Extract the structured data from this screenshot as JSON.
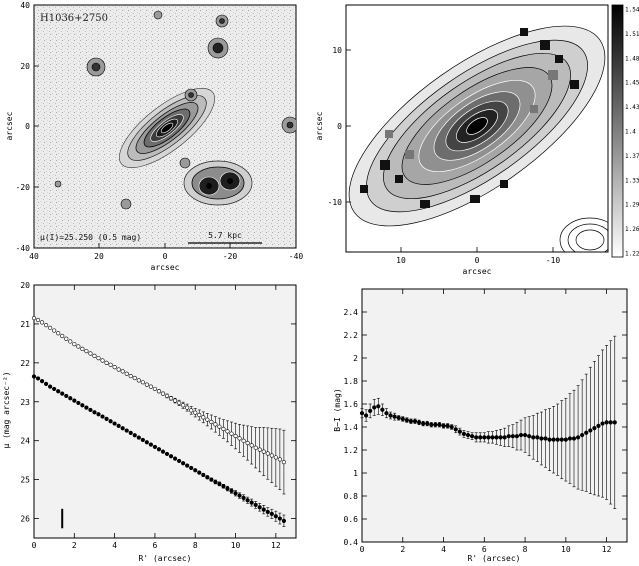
{
  "chart_data": [
    {
      "type": "image",
      "panel": "top-left",
      "object_label": "H1036+2750",
      "contour_note": "μ(I)=25.250 (0.5 mag)",
      "scale_bar_label": "5.7 kpc",
      "x_ticks": [
        "40",
        "20",
        "0",
        "-20",
        "-40"
      ],
      "y_ticks": [
        "40",
        "20",
        "0",
        "-20",
        "-40"
      ],
      "xlabel": "arcsec",
      "ylabel": "arcsec"
    },
    {
      "type": "image",
      "panel": "top-right",
      "x_ticks": [
        "10",
        "0",
        "-10"
      ],
      "y_ticks": [
        "10",
        "0",
        "-10"
      ],
      "xlabel": "arcsec",
      "ylabel": "arcsec",
      "colorbar_ticks": [
        "1.54",
        "1.51",
        "1.48",
        "1.45",
        "1.43",
        "1.4",
        "1.37",
        "1.33",
        "1.29",
        "1.26",
        "1.22"
      ]
    },
    {
      "type": "scatter",
      "panel": "bottom-left",
      "xlabel": "R' (arcsec)",
      "ylabel": "μ (mag arcsec⁻²)",
      "xlim": [
        0,
        13
      ],
      "ylim": [
        26.5,
        20
      ],
      "y_inverted": true,
      "x_ticks": [
        0,
        2,
        4,
        6,
        8,
        10,
        12
      ],
      "y_ticks": [
        20,
        21,
        22,
        23,
        24,
        25,
        26
      ],
      "series": [
        {
          "marker": "open-circle",
          "x": [
            0.0,
            0.2,
            0.4,
            0.6,
            0.8,
            1.0,
            1.2,
            1.4,
            1.6,
            1.8,
            2.0,
            2.2,
            2.4,
            2.6,
            2.8,
            3.0,
            3.2,
            3.4,
            3.6,
            3.8,
            4.0,
            4.2,
            4.4,
            4.6,
            4.8,
            5.0,
            5.2,
            5.4,
            5.6,
            5.8,
            6.0,
            6.2,
            6.4,
            6.6,
            6.8,
            7.0,
            7.2,
            7.4,
            7.6,
            7.8,
            8.0,
            8.2,
            8.4,
            8.6,
            8.8,
            9.0,
            9.2,
            9.4,
            9.6,
            9.8,
            10.0,
            10.2,
            10.4,
            10.6,
            10.8,
            11.0,
            11.2,
            11.4,
            11.6,
            11.8,
            12.0,
            12.2,
            12.4
          ],
          "y": [
            20.85,
            20.9,
            20.96,
            21.03,
            21.1,
            21.17,
            21.24,
            21.31,
            21.38,
            21.45,
            21.52,
            21.58,
            21.64,
            21.7,
            21.76,
            21.82,
            21.88,
            21.94,
            22.0,
            22.05,
            22.11,
            22.17,
            22.22,
            22.28,
            22.34,
            22.39,
            22.45,
            22.5,
            22.56,
            22.61,
            22.67,
            22.73,
            22.79,
            22.85,
            22.91,
            22.97,
            23.03,
            23.09,
            23.15,
            23.22,
            23.28,
            23.34,
            23.4,
            23.46,
            23.52,
            23.58,
            23.64,
            23.7,
            23.76,
            23.82,
            23.88,
            23.94,
            24.0,
            24.06,
            24.12,
            24.18,
            24.23,
            24.28,
            24.33,
            24.38,
            24.43,
            24.48,
            24.55
          ],
          "yerr": [
            0.01,
            0.01,
            0.01,
            0.01,
            0.01,
            0.01,
            0.01,
            0.01,
            0.01,
            0.01,
            0.01,
            0.01,
            0.01,
            0.01,
            0.01,
            0.01,
            0.01,
            0.01,
            0.01,
            0.01,
            0.02,
            0.02,
            0.02,
            0.02,
            0.02,
            0.02,
            0.02,
            0.03,
            0.03,
            0.03,
            0.03,
            0.04,
            0.04,
            0.05,
            0.05,
            0.06,
            0.07,
            0.08,
            0.09,
            0.1,
            0.11,
            0.13,
            0.14,
            0.16,
            0.18,
            0.2,
            0.22,
            0.24,
            0.27,
            0.3,
            0.33,
            0.36,
            0.4,
            0.44,
            0.48,
            0.52,
            0.57,
            0.62,
            0.66,
            0.7,
            0.74,
            0.78,
            0.82
          ]
        },
        {
          "marker": "filled-circle",
          "x": [
            0.0,
            0.2,
            0.4,
            0.6,
            0.8,
            1.0,
            1.2,
            1.4,
            1.6,
            1.8,
            2.0,
            2.2,
            2.4,
            2.6,
            2.8,
            3.0,
            3.2,
            3.4,
            3.6,
            3.8,
            4.0,
            4.2,
            4.4,
            4.6,
            4.8,
            5.0,
            5.2,
            5.4,
            5.6,
            5.8,
            6.0,
            6.2,
            6.4,
            6.6,
            6.8,
            7.0,
            7.2,
            7.4,
            7.6,
            7.8,
            8.0,
            8.2,
            8.4,
            8.6,
            8.8,
            9.0,
            9.2,
            9.4,
            9.6,
            9.8,
            10.0,
            10.2,
            10.4,
            10.6,
            10.8,
            11.0,
            11.2,
            11.4,
            11.6,
            11.8,
            12.0,
            12.2,
            12.4
          ],
          "y": [
            22.35,
            22.4,
            22.47,
            22.54,
            22.61,
            22.67,
            22.73,
            22.79,
            22.85,
            22.91,
            22.97,
            23.03,
            23.09,
            23.15,
            23.21,
            23.27,
            23.32,
            23.38,
            23.44,
            23.5,
            23.56,
            23.62,
            23.68,
            23.74,
            23.8,
            23.86,
            23.92,
            23.98,
            24.04,
            24.1,
            24.16,
            24.22,
            24.28,
            24.34,
            24.4,
            24.46,
            24.52,
            24.58,
            24.64,
            24.7,
            24.76,
            24.82,
            24.88,
            24.94,
            25.0,
            25.06,
            25.11,
            25.17,
            25.23,
            25.29,
            25.35,
            25.41,
            25.47,
            25.53,
            25.59,
            25.65,
            25.71,
            25.77,
            25.83,
            25.88,
            25.94,
            26.0,
            26.06
          ],
          "yerr": [
            0.01,
            0.01,
            0.01,
            0.01,
            0.01,
            0.01,
            0.01,
            0.01,
            0.01,
            0.01,
            0.01,
            0.01,
            0.01,
            0.01,
            0.01,
            0.01,
            0.01,
            0.01,
            0.01,
            0.01,
            0.01,
            0.01,
            0.01,
            0.01,
            0.01,
            0.01,
            0.01,
            0.01,
            0.01,
            0.01,
            0.02,
            0.02,
            0.02,
            0.02,
            0.02,
            0.02,
            0.02,
            0.03,
            0.03,
            0.03,
            0.03,
            0.03,
            0.04,
            0.04,
            0.04,
            0.05,
            0.05,
            0.05,
            0.06,
            0.06,
            0.07,
            0.07,
            0.08,
            0.08,
            0.09,
            0.09,
            0.1,
            0.11,
            0.11,
            0.12,
            0.13,
            0.14,
            0.15
          ]
        }
      ],
      "resolution_bar": {
        "x": 1.4,
        "y_top": 25.75,
        "y_bottom": 26.25
      }
    },
    {
      "type": "scatter",
      "panel": "bottom-right",
      "xlabel": "R' (arcsec)",
      "ylabel": "B−I (mag)",
      "xlim": [
        0,
        13
      ],
      "ylim": [
        0.4,
        2.6
      ],
      "x_ticks": [
        0,
        2,
        4,
        6,
        8,
        10,
        12
      ],
      "y_ticks": [
        0.4,
        0.6,
        0.8,
        1.0,
        1.2,
        1.4,
        1.6,
        1.8,
        2.0,
        2.2,
        2.4
      ],
      "series": [
        {
          "marker": "filled-circle",
          "x": [
            0.0,
            0.2,
            0.4,
            0.6,
            0.8,
            1.0,
            1.2,
            1.4,
            1.6,
            1.8,
            2.0,
            2.2,
            2.4,
            2.6,
            2.8,
            3.0,
            3.2,
            3.4,
            3.6,
            3.8,
            4.0,
            4.2,
            4.4,
            4.6,
            4.8,
            5.0,
            5.2,
            5.4,
            5.6,
            5.8,
            6.0,
            6.2,
            6.4,
            6.6,
            6.8,
            7.0,
            7.2,
            7.4,
            7.6,
            7.8,
            8.0,
            8.2,
            8.4,
            8.6,
            8.8,
            9.0,
            9.2,
            9.4,
            9.6,
            9.8,
            10.0,
            10.2,
            10.4,
            10.6,
            10.8,
            11.0,
            11.2,
            11.4,
            11.6,
            11.8,
            12.0,
            12.2,
            12.4
          ],
          "y": [
            1.52,
            1.5,
            1.54,
            1.57,
            1.58,
            1.55,
            1.52,
            1.5,
            1.49,
            1.48,
            1.47,
            1.46,
            1.45,
            1.45,
            1.44,
            1.43,
            1.43,
            1.42,
            1.42,
            1.42,
            1.41,
            1.41,
            1.4,
            1.38,
            1.36,
            1.34,
            1.33,
            1.32,
            1.31,
            1.31,
            1.31,
            1.31,
            1.31,
            1.31,
            1.31,
            1.31,
            1.32,
            1.32,
            1.32,
            1.33,
            1.33,
            1.32,
            1.31,
            1.31,
            1.3,
            1.3,
            1.29,
            1.29,
            1.29,
            1.29,
            1.29,
            1.3,
            1.3,
            1.31,
            1.33,
            1.35,
            1.37,
            1.39,
            1.41,
            1.43,
            1.44,
            1.44,
            1.44
          ],
          "yerr": [
            0.04,
            0.05,
            0.06,
            0.07,
            0.07,
            0.05,
            0.04,
            0.03,
            0.03,
            0.02,
            0.02,
            0.02,
            0.02,
            0.02,
            0.02,
            0.02,
            0.02,
            0.02,
            0.02,
            0.02,
            0.02,
            0.02,
            0.02,
            0.03,
            0.03,
            0.03,
            0.03,
            0.03,
            0.04,
            0.04,
            0.04,
            0.05,
            0.05,
            0.06,
            0.07,
            0.08,
            0.09,
            0.1,
            0.12,
            0.13,
            0.15,
            0.17,
            0.19,
            0.21,
            0.23,
            0.25,
            0.27,
            0.29,
            0.31,
            0.34,
            0.36,
            0.39,
            0.42,
            0.45,
            0.48,
            0.51,
            0.55,
            0.58,
            0.61,
            0.64,
            0.67,
            0.71,
            0.75
          ]
        }
      ]
    }
  ]
}
